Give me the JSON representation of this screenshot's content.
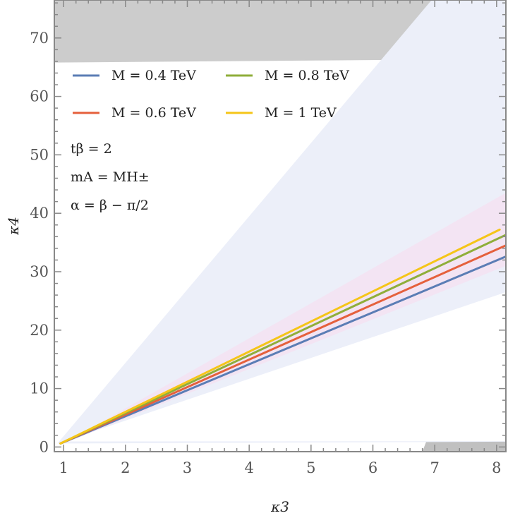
{
  "chart_data": {
    "type": "line",
    "title": "",
    "xlabel": "κ3",
    "ylabel": "κ4",
    "xlim": [
      0.85,
      8.15
    ],
    "ylim": [
      -0.8,
      76.5
    ],
    "xticks": [
      "1",
      "2",
      "3",
      "4",
      "5",
      "6",
      "7",
      "8"
    ],
    "yticks": [
      "0",
      "10",
      "20",
      "30",
      "40",
      "50",
      "60",
      "70"
    ],
    "series": [
      {
        "name": "M = 0.4 TeV",
        "color": "#5b7db5",
        "x": [
          0.95,
          8.15
        ],
        "y": [
          0.6,
          32.6
        ]
      },
      {
        "name": "M = 0.6 TeV",
        "color": "#e5603c",
        "x": [
          0.95,
          8.15
        ],
        "y": [
          0.6,
          34.5
        ]
      },
      {
        "name": "M = 0.8 TeV",
        "color": "#8fae3a",
        "x": [
          0.95,
          8.15
        ],
        "y": [
          0.6,
          36.3
        ]
      },
      {
        "name": "M = 1 TeV",
        "color": "#f5c518",
        "x": [
          0.95,
          8.05
        ],
        "y": [
          0.6,
          37.2
        ]
      }
    ],
    "regions": [
      {
        "name": "excluded-top",
        "color": "#cccccc",
        "points": [
          [
            0.85,
            65.8
          ],
          [
            8.15,
            66.4
          ],
          [
            8.15,
            76.5
          ],
          [
            0.85,
            76.5
          ]
        ]
      },
      {
        "name": "excluded-right",
        "color": "#c0c0c0",
        "points": [
          [
            6.8,
            -0.8
          ],
          [
            8.15,
            -0.8
          ],
          [
            8.15,
            36.0
          ]
        ]
      },
      {
        "name": "excluded-top-right",
        "color": "#bababa",
        "points": [
          [
            6.95,
            66.2
          ],
          [
            7.55,
            76.5
          ],
          [
            8.15,
            76.5
          ],
          [
            8.15,
            66.4
          ]
        ]
      },
      {
        "name": "allowed-blue-band",
        "color": "#eceff9",
        "points": [
          [
            0.9,
            0.6
          ],
          [
            6.95,
            76.5
          ],
          [
            8.15,
            76.5
          ],
          [
            8.15,
            0.9
          ]
        ]
      },
      {
        "name": "white-lower-wedge",
        "color": "#ffffff",
        "points": [
          [
            1.0,
            0.95
          ],
          [
            8.15,
            1.0
          ],
          [
            8.15,
            26.5
          ]
        ]
      },
      {
        "name": "pink-band",
        "color": "#f3e4f3",
        "points": [
          [
            1.0,
            0.6
          ],
          [
            8.15,
            43.5
          ],
          [
            8.15,
            31.0
          ]
        ]
      }
    ],
    "legend": {
      "position": "top-left",
      "columns": 2,
      "items": [
        "M = 0.4 TeV",
        "M = 0.8 TeV",
        "M = 0.6 TeV",
        "M = 1 TeV"
      ]
    },
    "annotations": [
      "tβ = 2",
      "mA = MH±",
      "α = β − π/2"
    ]
  }
}
